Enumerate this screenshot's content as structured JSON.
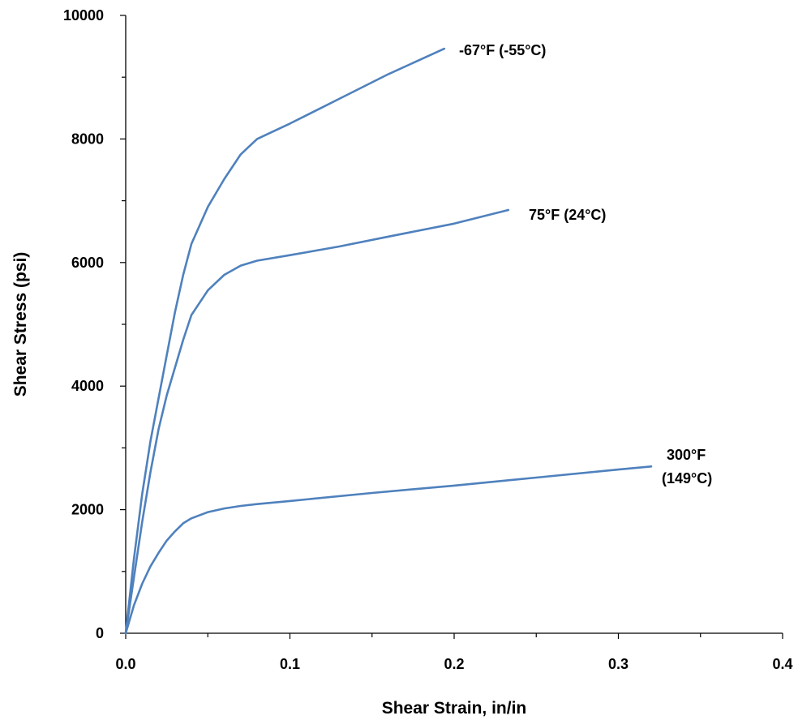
{
  "chart_data": {
    "type": "line",
    "title": "",
    "xlabel": "Shear Strain, in/in",
    "ylabel": "Shear Stress (psi)",
    "xlim": [
      0,
      0.4
    ],
    "ylim": [
      0,
      10000
    ],
    "x_major_ticks": [
      "0.0",
      "0.1",
      "0.2",
      "0.3",
      "0.4"
    ],
    "y_major_ticks": [
      "0",
      "2000",
      "4000",
      "6000",
      "8000",
      "10000"
    ],
    "grid": false,
    "line_color": "#4F81BD",
    "series": [
      {
        "name": "-67°F (-55°C)",
        "label_lines": [
          "-67°F (-55°C)"
        ],
        "points": [
          [
            0,
            0
          ],
          [
            0.005,
            1200
          ],
          [
            0.01,
            2250
          ],
          [
            0.015,
            3100
          ],
          [
            0.02,
            3800
          ],
          [
            0.025,
            4500
          ],
          [
            0.03,
            5200
          ],
          [
            0.035,
            5800
          ],
          [
            0.04,
            6300
          ],
          [
            0.05,
            6900
          ],
          [
            0.06,
            7350
          ],
          [
            0.07,
            7750
          ],
          [
            0.08,
            8000
          ],
          [
            0.088,
            8100
          ],
          [
            0.1,
            8250
          ],
          [
            0.13,
            8650
          ],
          [
            0.16,
            9050
          ],
          [
            0.194,
            9460
          ]
        ]
      },
      {
        "name": "75°F (24°C)",
        "label_lines": [
          "75°F (24°C)"
        ],
        "points": [
          [
            0,
            0
          ],
          [
            0.005,
            900
          ],
          [
            0.01,
            1800
          ],
          [
            0.015,
            2600
          ],
          [
            0.02,
            3300
          ],
          [
            0.025,
            3850
          ],
          [
            0.03,
            4300
          ],
          [
            0.035,
            4750
          ],
          [
            0.04,
            5150
          ],
          [
            0.05,
            5550
          ],
          [
            0.06,
            5800
          ],
          [
            0.07,
            5950
          ],
          [
            0.08,
            6030
          ],
          [
            0.1,
            6120
          ],
          [
            0.13,
            6260
          ],
          [
            0.16,
            6420
          ],
          [
            0.2,
            6630
          ],
          [
            0.233,
            6850
          ]
        ]
      },
      {
        "name": "300°F (149°C)",
        "label_lines": [
          "300°F",
          "(149°C)"
        ],
        "points": [
          [
            0,
            0
          ],
          [
            0.005,
            450
          ],
          [
            0.01,
            800
          ],
          [
            0.015,
            1080
          ],
          [
            0.02,
            1300
          ],
          [
            0.025,
            1500
          ],
          [
            0.03,
            1650
          ],
          [
            0.035,
            1780
          ],
          [
            0.04,
            1860
          ],
          [
            0.05,
            1960
          ],
          [
            0.06,
            2020
          ],
          [
            0.07,
            2060
          ],
          [
            0.08,
            2090
          ],
          [
            0.1,
            2140
          ],
          [
            0.15,
            2270
          ],
          [
            0.2,
            2390
          ],
          [
            0.25,
            2520
          ],
          [
            0.3,
            2650
          ],
          [
            0.32,
            2700
          ]
        ]
      }
    ]
  }
}
